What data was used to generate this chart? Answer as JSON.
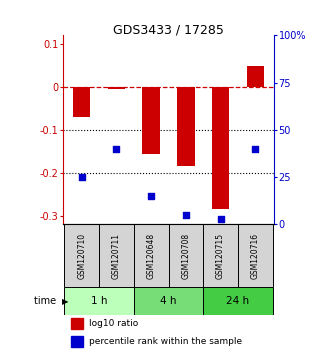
{
  "title": "GDS3433 / 17285",
  "samples": [
    "GSM120710",
    "GSM120711",
    "GSM120648",
    "GSM120708",
    "GSM120715",
    "GSM120716"
  ],
  "log10_ratio": [
    -0.07,
    -0.005,
    -0.155,
    -0.185,
    -0.285,
    0.048
  ],
  "percentile_rank": [
    25,
    40,
    15,
    5,
    3,
    40
  ],
  "groups": [
    {
      "label": "1 h",
      "indices": [
        0,
        1
      ]
    },
    {
      "label": "4 h",
      "indices": [
        2,
        3
      ]
    },
    {
      "label": "24 h",
      "indices": [
        4,
        5
      ]
    }
  ],
  "group_colors": [
    "#bbffbb",
    "#77dd77",
    "#44cc44"
  ],
  "ylim_left": [
    -0.32,
    0.12
  ],
  "ylim_right": [
    0,
    100
  ],
  "yticks_left": [
    0.1,
    0.0,
    -0.1,
    -0.2,
    -0.3
  ],
  "yticks_left_labels": [
    "0.1",
    "0",
    "-0.1",
    "-0.2",
    "-0.3"
  ],
  "yticks_right": [
    100,
    75,
    50,
    25,
    0
  ],
  "yticks_right_labels": [
    "100%",
    "75",
    "50",
    "25",
    "0"
  ],
  "bar_color": "#cc0000",
  "dot_color": "#0000cc",
  "bg_color": "#ffffff",
  "legend_bar": "log10 ratio",
  "legend_dot": "percentile rank within the sample",
  "time_label": "time"
}
